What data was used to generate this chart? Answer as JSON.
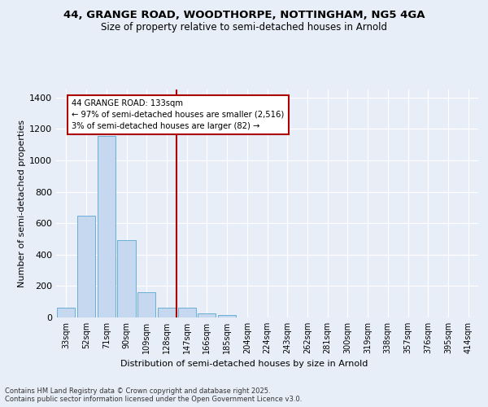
{
  "title_line1": "44, GRANGE ROAD, WOODTHORPE, NOTTINGHAM, NG5 4GA",
  "title_line2": "Size of property relative to semi-detached houses in Arnold",
  "xlabel": "Distribution of semi-detached houses by size in Arnold",
  "ylabel": "Number of semi-detached properties",
  "categories": [
    "33sqm",
    "52sqm",
    "71sqm",
    "90sqm",
    "109sqm",
    "128sqm",
    "147sqm",
    "166sqm",
    "185sqm",
    "204sqm",
    "224sqm",
    "243sqm",
    "262sqm",
    "281sqm",
    "300sqm",
    "319sqm",
    "338sqm",
    "357sqm",
    "376sqm",
    "395sqm",
    "414sqm"
  ],
  "values": [
    60,
    645,
    1155,
    490,
    160,
    60,
    60,
    25,
    15,
    0,
    0,
    0,
    0,
    0,
    0,
    0,
    0,
    0,
    0,
    0,
    0
  ],
  "bar_color": "#c5d8f0",
  "bar_edge_color": "#6baed6",
  "vline_x_idx": 5.5,
  "annotation_title": "44 GRANGE ROAD: 133sqm",
  "annotation_line2": "← 97% of semi-detached houses are smaller (2,516)",
  "annotation_line3": "3% of semi-detached houses are larger (82) →",
  "vline_color": "#aa0000",
  "annotation_box_edgecolor": "#aa0000",
  "ylim": [
    0,
    1450
  ],
  "yticks": [
    0,
    200,
    400,
    600,
    800,
    1000,
    1200,
    1400
  ],
  "background_color": "#e8eef8",
  "grid_color": "#ffffff",
  "footer_line1": "Contains HM Land Registry data © Crown copyright and database right 2025.",
  "footer_line2": "Contains public sector information licensed under the Open Government Licence v3.0."
}
